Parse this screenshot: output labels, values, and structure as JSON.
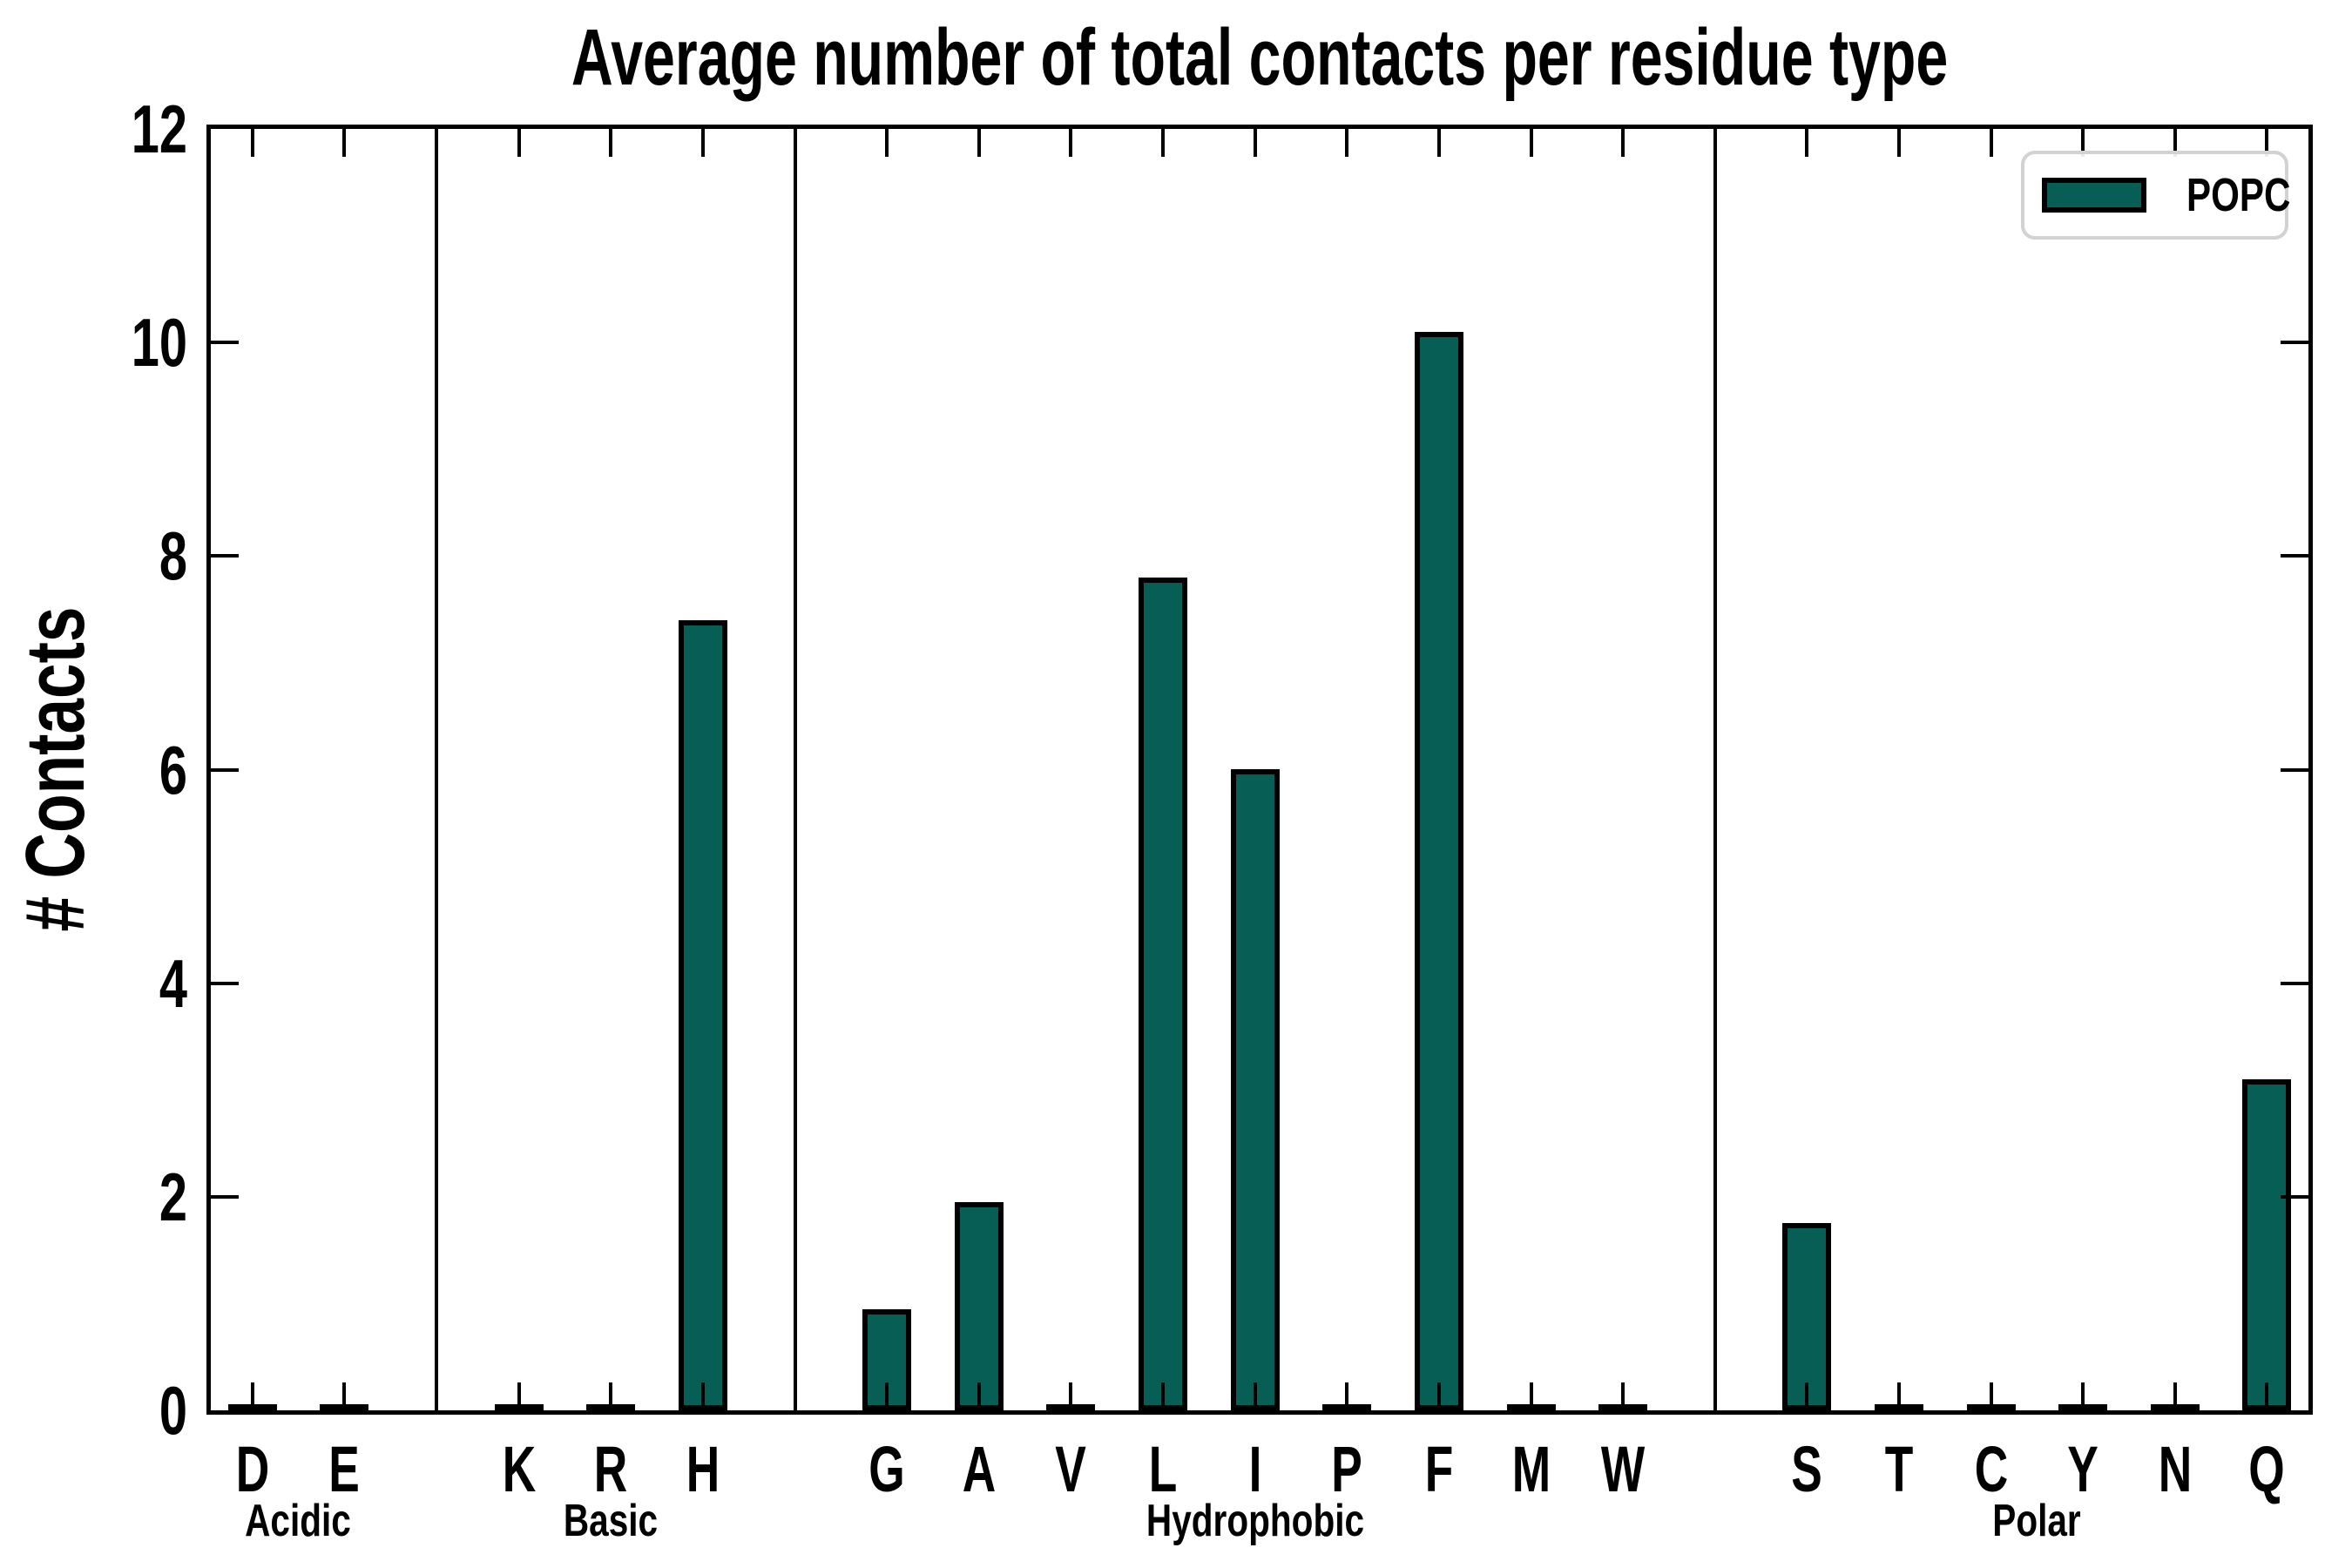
{
  "chart_data": {
    "type": "bar",
    "title": "Average number of total contacts per residue type",
    "ylabel": "# Contacts",
    "ylim": [
      0,
      12
    ],
    "yticks": [
      0,
      2,
      4,
      6,
      8,
      10,
      12
    ],
    "yticklabels": [
      "0",
      "2",
      "4",
      "6",
      "8",
      "10",
      "12"
    ],
    "grid": false,
    "legend_position": "upper right",
    "legend_label": "POPC",
    "bar_color": "#065e54",
    "bar_edge_color": "#000000",
    "groups": [
      {
        "name": "Acidic",
        "categories": [
          "D",
          "E"
        ],
        "values": [
          0,
          0
        ]
      },
      {
        "name": "Basic",
        "categories": [
          "K",
          "R",
          "H"
        ],
        "values": [
          0,
          0,
          7.4
        ]
      },
      {
        "name": "Hydrophobic",
        "categories": [
          "G",
          "A",
          "V",
          "L",
          "I",
          "P",
          "F",
          "M",
          "W"
        ],
        "values": [
          0.95,
          1.95,
          0,
          7.8,
          6.0,
          0,
          10.1,
          0,
          0
        ]
      },
      {
        "name": "Polar",
        "categories": [
          "S",
          "T",
          "C",
          "Y",
          "N",
          "Q"
        ],
        "values": [
          1.75,
          0,
          0,
          0,
          0,
          3.1
        ]
      }
    ]
  }
}
